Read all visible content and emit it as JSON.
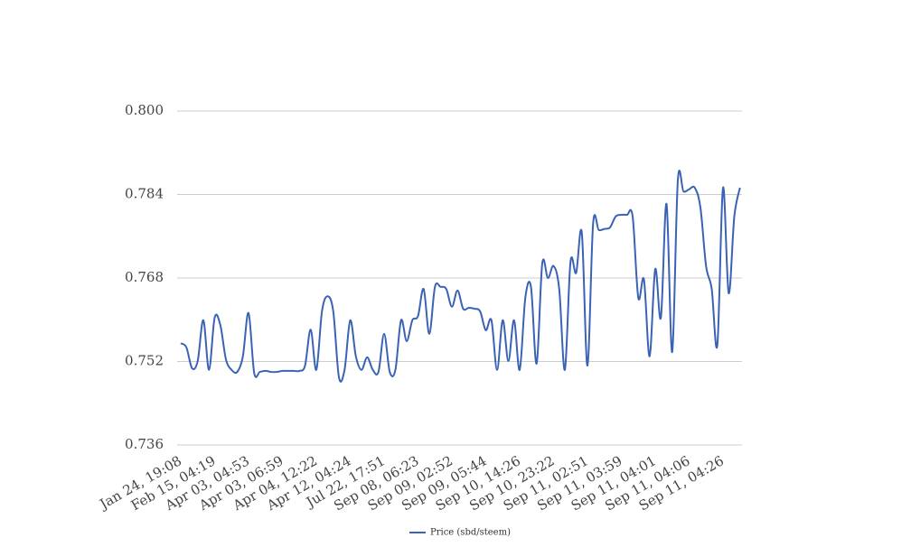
{
  "chart_data": {
    "type": "line",
    "categories": [
      "Jan 24, 19:08",
      null,
      null,
      null,
      null,
      null,
      "Feb 15, 04:19",
      null,
      null,
      null,
      null,
      null,
      "Apr 03, 04:53",
      null,
      null,
      null,
      null,
      null,
      "Apr 03, 06:59",
      null,
      null,
      null,
      null,
      null,
      "Apr 04, 12:22",
      null,
      null,
      null,
      null,
      null,
      "Apr 12, 04:24",
      null,
      null,
      null,
      null,
      null,
      "Jul 22, 17:51",
      null,
      null,
      null,
      null,
      null,
      "Sep 08, 06:23",
      null,
      null,
      null,
      null,
      null,
      "Sep 09, 02:52",
      null,
      null,
      null,
      null,
      null,
      "Sep 09, 05:44",
      null,
      null,
      null,
      null,
      null,
      "Sep 10, 14:26",
      null,
      null,
      null,
      null,
      null,
      "Sep 10, 23:22",
      null,
      null,
      null,
      null,
      null,
      "Sep 11, 02:51",
      null,
      null,
      null,
      null,
      null,
      "Sep 11, 03:59",
      null,
      null,
      null,
      null,
      null,
      "Sep 11, 04:01",
      null,
      null,
      null,
      null,
      null,
      "Sep 11, 04:06",
      null,
      null,
      null,
      null,
      null,
      "Sep 11, 04:26",
      null,
      null,
      null
    ],
    "series": [
      {
        "name": "Price (sbd/steem)",
        "color": "#3a62b5",
        "values": [
          0.7555,
          0.7547,
          0.7507,
          0.7521,
          0.7599,
          0.7504,
          0.7604,
          0.759,
          0.7524,
          0.7504,
          0.75,
          0.753,
          0.7613,
          0.7498,
          0.75,
          0.7502,
          0.75,
          0.75,
          0.7502,
          0.7502,
          0.7502,
          0.7502,
          0.7512,
          0.7581,
          0.7504,
          0.7616,
          0.7645,
          0.7616,
          0.749,
          0.7504,
          0.7599,
          0.753,
          0.7504,
          0.7528,
          0.7504,
          0.75,
          0.7573,
          0.75,
          0.7504,
          0.7599,
          0.7559,
          0.7599,
          0.7607,
          0.7659,
          0.7573,
          0.7663,
          0.7663,
          0.7659,
          0.7625,
          0.7656,
          0.7621,
          0.7623,
          0.7621,
          0.7616,
          0.758,
          0.7599,
          0.7504,
          0.7599,
          0.7521,
          0.7599,
          0.7504,
          0.7642,
          0.7663,
          0.7516,
          0.7708,
          0.768,
          0.7703,
          0.7659,
          0.7504,
          0.7711,
          0.769,
          0.7767,
          0.7512,
          0.7784,
          0.7772,
          0.7774,
          0.7777,
          0.7798,
          0.7801,
          0.7801,
          0.7798,
          0.7642,
          0.7677,
          0.753,
          0.7697,
          0.7604,
          0.7822,
          0.7538,
          0.7867,
          0.7846,
          0.785,
          0.7853,
          0.7815,
          0.7703,
          0.7659,
          0.7552,
          0.7853,
          0.7651,
          0.7798,
          0.7853
        ]
      }
    ],
    "ylim": [
      0.736,
      0.8
    ],
    "yticks": [
      0.736,
      0.752,
      0.768,
      0.784,
      {
        "value": 0.8,
        "label": "0.800"
      }
    ],
    "grid": true,
    "legend": "bottom"
  }
}
